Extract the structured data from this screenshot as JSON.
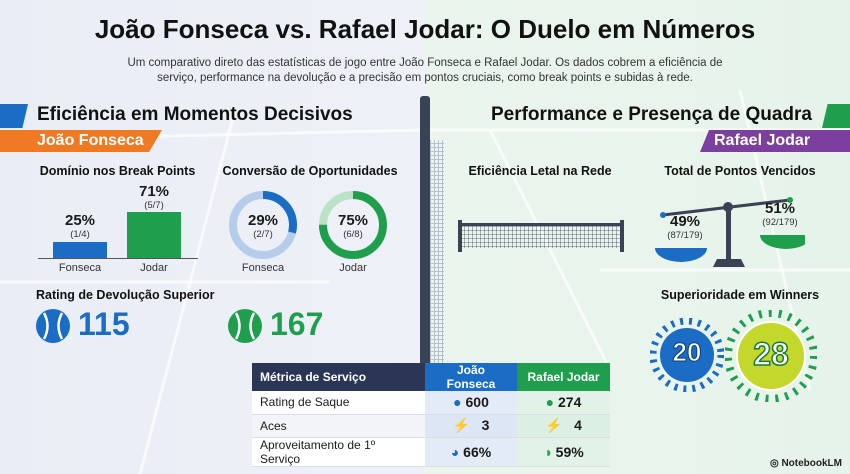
{
  "title": "João Fonseca vs. Rafael Jodar: O Duelo em Números",
  "subtitle": "Um comparativo direto das estatísticas de jogo entre João Fonseca e Rafael Jodar. Os dados cobrem a eficiência de serviço, performance na devolução e a precisão em pontos cruciais, como break points e subidas à rede.",
  "colors": {
    "fonseca": "#1a6cc4",
    "jodar": "#1f9f4e",
    "orange": "#f07a23",
    "purple": "#7b3f9e"
  },
  "left": {
    "heading": "Eficiência em Momentos Decisivos",
    "player": "João Fonseca",
    "break_points": {
      "title": "Domínio nos Break Points",
      "items": [
        {
          "label": "Fonseca",
          "pct": "25%",
          "frac": "(1/4)",
          "value": 25
        },
        {
          "label": "Jodar",
          "pct": "71%",
          "frac": "(5/7)",
          "value": 71
        }
      ]
    },
    "conversion": {
      "title": "Conversão de Oportunidades",
      "items": [
        {
          "label": "Fonseca",
          "pct": "29%",
          "frac": "(2/7)",
          "value": 29
        },
        {
          "label": "Jodar",
          "pct": "75%",
          "frac": "(6/8)",
          "value": 75
        }
      ]
    },
    "return_rating": {
      "title": "Rating de Devolução Superior",
      "fonseca": "115",
      "jodar": "167"
    }
  },
  "right": {
    "heading": "Performance e Presença de Quadra",
    "player": "Rafael Jodar",
    "net": {
      "title": "Eficiência Letal na Rede"
    },
    "points": {
      "title": "Total de Pontos Vencidos",
      "fonseca_pct": "49%",
      "fonseca_frac": "(87/179)",
      "jodar_pct": "51%",
      "jodar_frac": "(92/179)"
    },
    "winners": {
      "title": "Superioridade em Winners",
      "fonseca": "20",
      "jodar": "28"
    }
  },
  "table": {
    "headers": [
      "Métrica de Serviço",
      "João Fonseca",
      "Rafael Jodar"
    ],
    "rows": [
      {
        "metric": "Rating de Saque",
        "icon": "tennis-ball-icon",
        "fonseca": "600",
        "jodar": "274"
      },
      {
        "metric": "Aces",
        "icon": "lightning-icon",
        "fonseca": "3",
        "jodar": "4"
      },
      {
        "metric": "Aproveitamento de 1º Serviço",
        "icon": "pie-icon",
        "fonseca": "66%",
        "jodar": "59%"
      }
    ]
  },
  "brand": "NotebookLM"
}
